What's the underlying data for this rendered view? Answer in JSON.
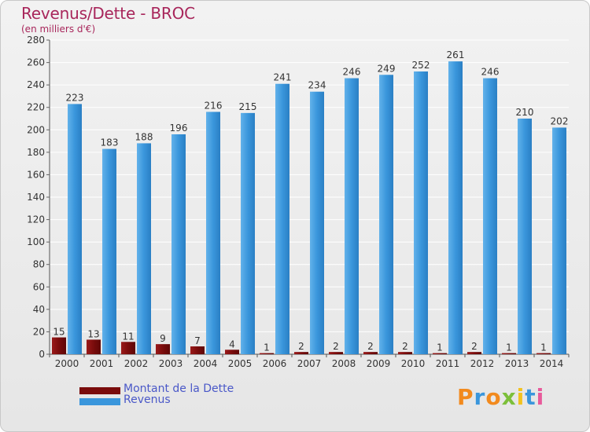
{
  "title": "Revenus/Dette - BROC",
  "subtitle": "(en milliers d'€)",
  "logo_text": "Proxiti",
  "colors": {
    "title": "#a8265b",
    "dette": "#7a0c0c",
    "revenus": "#3a96dc",
    "legend_text": "#4a58c8"
  },
  "legend": [
    {
      "label": "Montant de la Dette",
      "color": "#7a0c0c"
    },
    {
      "label": "Revenus",
      "color": "#3a96dc"
    }
  ],
  "chart_data": {
    "type": "bar",
    "categories": [
      "2000",
      "2001",
      "2002",
      "2003",
      "2004",
      "2005",
      "2006",
      "2007",
      "2008",
      "2009",
      "2010",
      "2011",
      "2012",
      "2013",
      "2014"
    ],
    "series": [
      {
        "name": "Montant de la Dette",
        "values": [
          15,
          13,
          11,
          9,
          7,
          4,
          1,
          2,
          2,
          2,
          2,
          1,
          2,
          1,
          1
        ]
      },
      {
        "name": "Revenus",
        "values": [
          223,
          183,
          188,
          196,
          216,
          215,
          241,
          234,
          246,
          249,
          252,
          261,
          246,
          210,
          202
        ]
      }
    ],
    "yticks": [
      0,
      20,
      40,
      60,
      80,
      100,
      120,
      140,
      160,
      180,
      200,
      220,
      240,
      260,
      280
    ],
    "ylim": [
      0,
      280
    ],
    "grid": true,
    "legend_position": "bottom-left"
  }
}
